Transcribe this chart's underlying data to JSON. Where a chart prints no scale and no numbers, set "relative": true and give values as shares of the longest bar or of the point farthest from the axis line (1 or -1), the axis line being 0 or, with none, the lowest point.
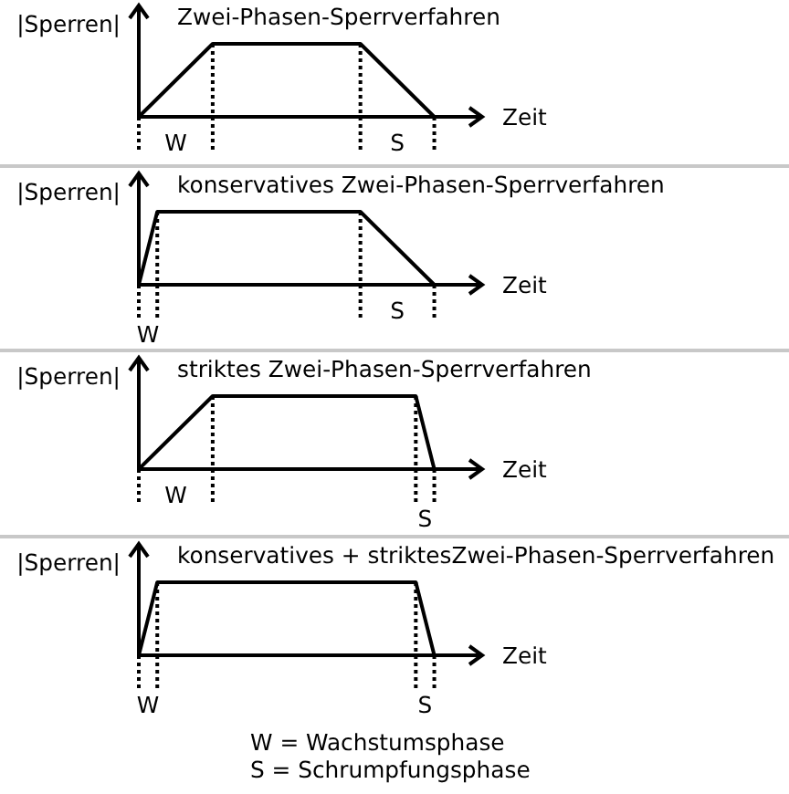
{
  "chart_data": [
    {
      "type": "line",
      "title": "Zwei-Phasen-Sperrverfahren",
      "xlabel": "Zeit",
      "ylabel": "|Sperren|",
      "relative": true,
      "marker": "none",
      "categories": [
        null,
        null,
        null,
        null,
        null,
        null,
        null,
        null,
        null,
        null,
        null,
        null,
        null,
        null,
        null,
        null,
        null,
        null,
        null
      ],
      "series": [
        {
          "color": "#000000",
          "values": [
            0,
            0.25,
            0.5,
            0.75,
            1,
            1,
            1,
            1,
            1,
            1,
            1,
            1,
            1,
            0.75,
            0.5,
            0.25,
            0,
            null,
            null
          ]
        }
      ],
      "annotations": [
        "W",
        "S"
      ]
    },
    {
      "type": "line",
      "title": "konservatives Zwei-Phasen-Sperrverfahren",
      "xlabel": "Zeit",
      "ylabel": "|Sperren|",
      "relative": true,
      "marker": "none",
      "categories": [
        null,
        null,
        null,
        null,
        null,
        null,
        null,
        null,
        null,
        null,
        null,
        null,
        null,
        null,
        null,
        null,
        null,
        null,
        null
      ],
      "series": [
        {
          "color": "#000000",
          "values": [
            0,
            1,
            1,
            1,
            1,
            1,
            1,
            1,
            1,
            1,
            1,
            1,
            1,
            0.75,
            0.5,
            0.25,
            0,
            null,
            null
          ]
        }
      ],
      "annotations": [
        "W",
        "S"
      ]
    },
    {
      "type": "line",
      "title": "striktes Zwei-Phasen-Sperrverfahren",
      "xlabel": "Zeit",
      "ylabel": "|Sperren|",
      "relative": true,
      "marker": "none",
      "categories": [
        null,
        null,
        null,
        null,
        null,
        null,
        null,
        null,
        null,
        null,
        null,
        null,
        null,
        null,
        null,
        null,
        null,
        null,
        null
      ],
      "series": [
        {
          "color": "#000000",
          "values": [
            0,
            0.25,
            0.5,
            0.75,
            1,
            1,
            1,
            1,
            1,
            1,
            1,
            1,
            1,
            1,
            1,
            1,
            0,
            null,
            null
          ]
        }
      ],
      "annotations": [
        "W",
        "S"
      ]
    },
    {
      "type": "line",
      "title": "konservatives + striktesZwei-Phasen-Sperrverfahren",
      "xlabel": "Zeit",
      "ylabel": "|Sperren|",
      "relative": true,
      "marker": "none",
      "categories": [
        null,
        null,
        null,
        null,
        null,
        null,
        null,
        null,
        null,
        null,
        null,
        null,
        null,
        null,
        null,
        null,
        null,
        null,
        null
      ],
      "series": [
        {
          "color": "#000000",
          "values": [
            0,
            1,
            1,
            1,
            1,
            1,
            1,
            1,
            1,
            1,
            1,
            1,
            1,
            1,
            1,
            1,
            0,
            null,
            null
          ]
        }
      ],
      "annotations": [
        "W",
        "S"
      ]
    },
    {
      "type": "other",
      "annotations": [
        "W = Wachstumsphase",
        "S = Schrumpfungsphase"
      ]
    }
  ]
}
